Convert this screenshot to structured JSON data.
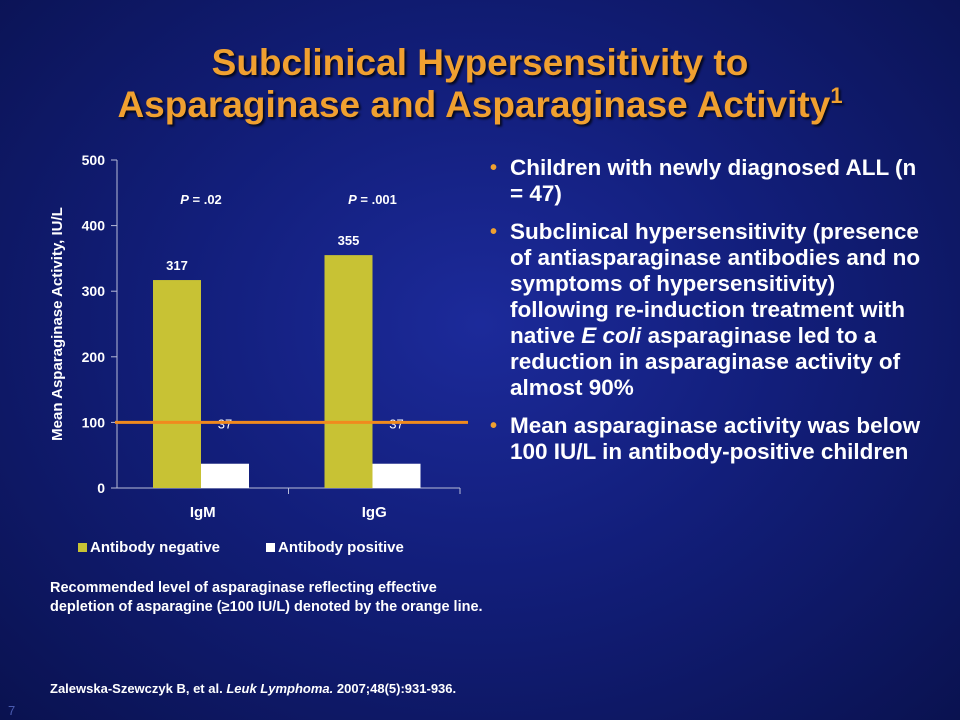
{
  "slide": {
    "title_line1": "Subclinical Hypersensitivity to",
    "title_line2": "Asparaginase and Asparaginase Activity",
    "title_superscript": "1",
    "bullets": [
      {
        "parts": [
          "Children with newly diagnosed ALL (n = 47)"
        ]
      },
      {
        "parts": [
          "Subclinical hypersensitivity (presence of antiasparaginase antibodies and no symptoms of hypersensitivity) following re-induction treatment with native ",
          "E coli",
          " asparaginase led to a reduction in asparaginase activity of almost 90%"
        ]
      },
      {
        "parts": [
          "Mean asparaginase activity was below 100 IU/L in antibody-positive children"
        ]
      }
    ],
    "caption": "Recommended level of asparaginase reflecting effective depletion of asparagine (≥100 IU/L) denoted by the orange line.",
    "citation_authors": "Zalewska-Szewczyk B, et al.",
    "citation_journal": "Leuk Lymphoma.",
    "citation_details": "2007;48(5):931-936.",
    "slide_number": "7",
    "colors": {
      "title": "#f0a030",
      "bullet_dot": "#f0a030",
      "background": "#121e7a"
    }
  },
  "chart_data": {
    "type": "bar",
    "categories": [
      "IgM",
      "IgG"
    ],
    "series": [
      {
        "name": "Antibody negative",
        "values": [
          317,
          355
        ],
        "color": "#c8c234"
      },
      {
        "name": "Antibody positive",
        "values": [
          37,
          37
        ],
        "color": "#ffffff"
      }
    ],
    "ylabel": "Mean Asparaginase Activity, IU/L",
    "ylim": [
      0,
      500
    ],
    "yticks": [
      0,
      100,
      200,
      300,
      400,
      500
    ],
    "p_values": [
      {
        "label": "P",
        "value": " = .02"
      },
      {
        "label": "P",
        "value": " = .001"
      }
    ],
    "reference_line": {
      "value": 100,
      "color": "#f08a1e"
    },
    "legend_position": "bottom",
    "grid": false
  }
}
